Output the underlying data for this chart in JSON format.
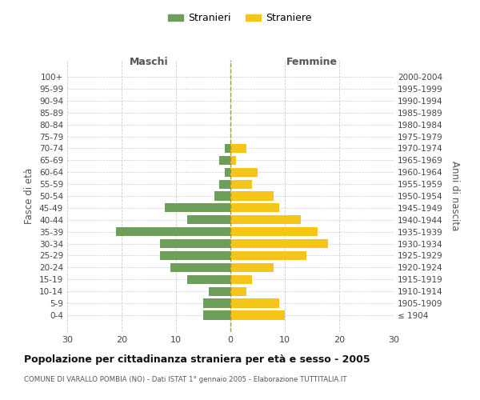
{
  "age_groups": [
    "100+",
    "95-99",
    "90-94",
    "85-89",
    "80-84",
    "75-79",
    "70-74",
    "65-69",
    "60-64",
    "55-59",
    "50-54",
    "45-49",
    "40-44",
    "35-39",
    "30-34",
    "25-29",
    "20-24",
    "15-19",
    "10-14",
    "5-9",
    "0-4"
  ],
  "birth_years": [
    "≤ 1904",
    "1905-1909",
    "1910-1914",
    "1915-1919",
    "1920-1924",
    "1925-1929",
    "1930-1934",
    "1935-1939",
    "1940-1944",
    "1945-1949",
    "1950-1954",
    "1955-1959",
    "1960-1964",
    "1965-1969",
    "1970-1974",
    "1975-1979",
    "1980-1984",
    "1985-1989",
    "1990-1994",
    "1995-1999",
    "2000-2004"
  ],
  "males": [
    0,
    0,
    0,
    0,
    0,
    0,
    1,
    2,
    1,
    2,
    3,
    12,
    8,
    21,
    13,
    13,
    11,
    8,
    4,
    5,
    5
  ],
  "females": [
    0,
    0,
    0,
    0,
    0,
    0,
    3,
    1,
    5,
    4,
    8,
    9,
    13,
    16,
    18,
    14,
    8,
    4,
    3,
    9,
    10
  ],
  "male_color": "#6d9e5a",
  "female_color": "#f5c518",
  "title": "Popolazione per cittadinanza straniera per età e sesso - 2005",
  "subtitle": "COMUNE DI VARALLO POMBIA (NO) - Dati ISTAT 1° gennaio 2005 - Elaborazione TUTTITALIA.IT",
  "xlabel_left": "Maschi",
  "xlabel_right": "Femmine",
  "ylabel_left": "Fasce di età",
  "ylabel_right": "Anni di nascita",
  "legend_stranieri": "Stranieri",
  "legend_straniere": "Straniere",
  "xlim": 30,
  "background_color": "#ffffff",
  "grid_color": "#cccccc"
}
